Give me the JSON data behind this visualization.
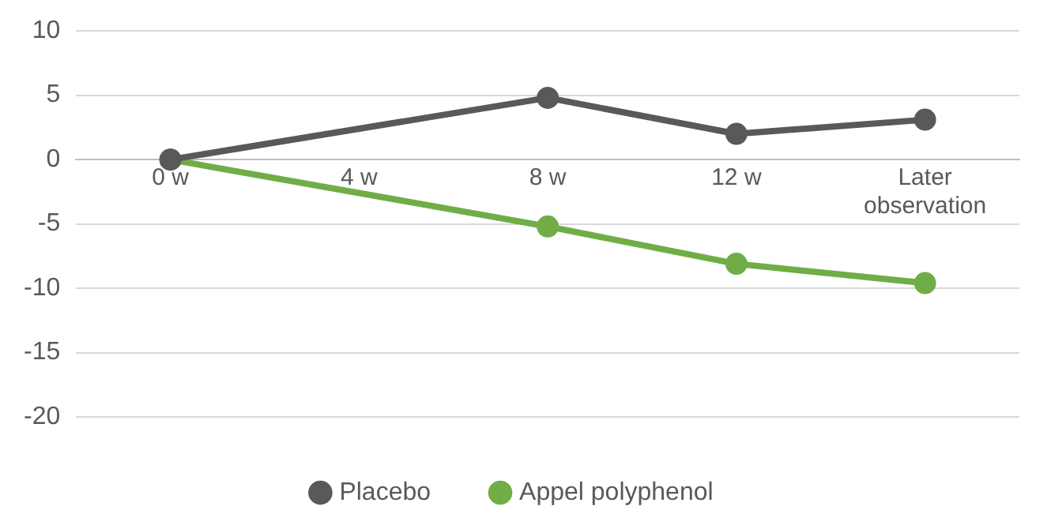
{
  "chart_data": {
    "type": "line",
    "categories": [
      "0 w",
      "4 w",
      "8 w",
      "12 w",
      "Later observation"
    ],
    "series": [
      {
        "name": "Placebo",
        "color": "#595959",
        "values": [
          0,
          null,
          4.8,
          2.0,
          3.1
        ]
      },
      {
        "name": "Appel polyphenol",
        "color": "#70ad47",
        "values": [
          0,
          null,
          -5.2,
          -8.1,
          -9.6
        ]
      }
    ],
    "ylim": [
      -20,
      10
    ],
    "yticks": [
      -20,
      -15,
      -10,
      -5,
      0,
      5,
      10
    ],
    "grid": "y",
    "legend": "bottom",
    "marker": "circle",
    "line_style": "solid"
  }
}
